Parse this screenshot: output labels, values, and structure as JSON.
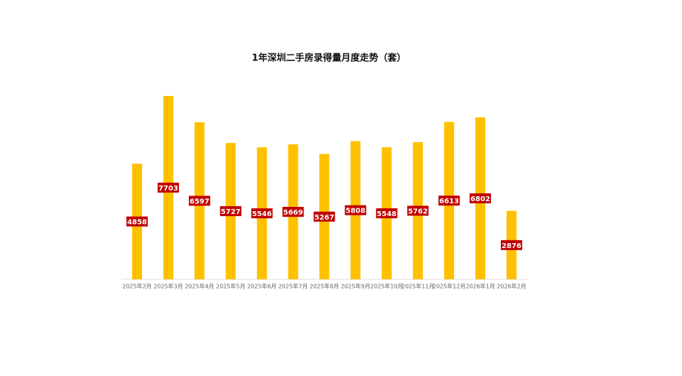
{
  "chart_data": {
    "type": "bar",
    "title": "1年深圳二手房录得量月度走势（套）",
    "categories": [
      "2025年2月",
      "2025年3月",
      "2025年4月",
      "2025年5月",
      "2025年6月",
      "2025年7月",
      "2025年8月",
      "2025年9月",
      "2025年10月",
      "2025年11月",
      "2025年12月",
      "2026年1月",
      "2026年2月"
    ],
    "values": [
      4858,
      7703,
      6597,
      5727,
      5546,
      5669,
      5267,
      5808,
      5548,
      5762,
      6613,
      6802,
      2876
    ],
    "color": "#ffc000",
    "label_color": "#c00000",
    "ylim": [
      0,
      8000
    ]
  }
}
